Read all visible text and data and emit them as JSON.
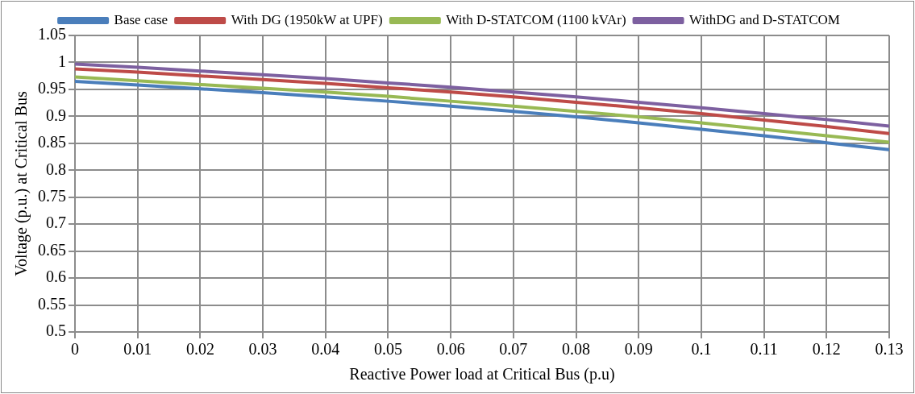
{
  "chart_data": {
    "type": "line",
    "xlabel": "Reactive Power load at Critical Bus (p.u)",
    "ylabel": "Voltage (p.u.) at Critical Bus",
    "x": [
      0,
      0.01,
      0.02,
      0.03,
      0.04,
      0.05,
      0.06,
      0.07,
      0.08,
      0.09,
      0.1,
      0.11,
      0.12,
      0.13
    ],
    "series": [
      {
        "name": "Base case",
        "color": "#4a7ebb",
        "values": [
          0.965,
          0.958,
          0.951,
          0.944,
          0.936,
          0.928,
          0.919,
          0.909,
          0.899,
          0.888,
          0.876,
          0.864,
          0.851,
          0.838
        ]
      },
      {
        "name": "With DG (1950kW at UPF)",
        "color": "#be4b48",
        "values": [
          0.988,
          0.982,
          0.975,
          0.968,
          0.961,
          0.953,
          0.945,
          0.936,
          0.926,
          0.916,
          0.905,
          0.893,
          0.881,
          0.868
        ]
      },
      {
        "name": "With D-STATCOM (1100 kVAr)",
        "color": "#98b954",
        "values": [
          0.973,
          0.966,
          0.959,
          0.952,
          0.945,
          0.937,
          0.928,
          0.919,
          0.909,
          0.899,
          0.888,
          0.876,
          0.864,
          0.852
        ]
      },
      {
        "name": "WithDG and D-STATCOM",
        "color": "#7d60a0",
        "values": [
          0.997,
          0.991,
          0.984,
          0.977,
          0.97,
          0.962,
          0.954,
          0.945,
          0.936,
          0.926,
          0.916,
          0.905,
          0.894,
          0.882
        ]
      }
    ],
    "xlim": [
      0,
      0.13
    ],
    "xticks": [
      0,
      0.01,
      0.02,
      0.03,
      0.04,
      0.05,
      0.06,
      0.07,
      0.08,
      0.09,
      0.1,
      0.11,
      0.12,
      0.13
    ],
    "ylim": [
      0.5,
      1.05
    ],
    "yticks": [
      0.5,
      0.55,
      0.6,
      0.65,
      0.7,
      0.75,
      0.8,
      0.85,
      0.9,
      0.95,
      1,
      1.05
    ],
    "grid": true,
    "legend": "top",
    "marker": "none",
    "line_style": "solid"
  }
}
